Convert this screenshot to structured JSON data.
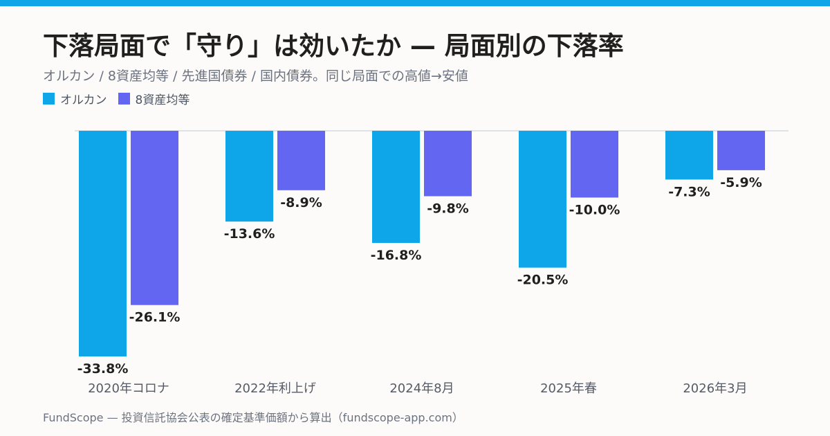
{
  "title": "下落局面で「守り」は効いたか — 局面別の下落率",
  "subtitle": "オルカン / 8資産均等 / 先進国債券 / 国内債券。同じ局面での高値→安値",
  "footer": "FundScope — 投資信託協会公表の確定基準価額から算出（fundscope-app.com）",
  "colors": {
    "accent": "#0ea5e9",
    "series1": "#0ea5e9",
    "series2": "#6366f1"
  },
  "chart_data": {
    "type": "bar",
    "categories": [
      "2020年コロナ",
      "2022年利上げ",
      "2024年8月",
      "2025年春",
      "2026年3月"
    ],
    "series": [
      {
        "name": "オルカン",
        "color": "#0ea5e9",
        "values": [
          -33.8,
          -13.6,
          -16.8,
          -20.5,
          -7.3
        ],
        "labels": [
          "-33.8%",
          "-13.6%",
          "-16.8%",
          "-20.5%",
          "-7.3%"
        ]
      },
      {
        "name": "8資産均等",
        "color": "#6366f1",
        "values": [
          -26.1,
          -8.9,
          -9.8,
          -10.0,
          -5.9
        ],
        "labels": [
          "-26.1%",
          "-8.9%",
          "-9.8%",
          "-10.0%",
          "-5.9%"
        ]
      }
    ],
    "ylim": [
      -33.8,
      0
    ],
    "grid": false,
    "legend": "top-left"
  }
}
